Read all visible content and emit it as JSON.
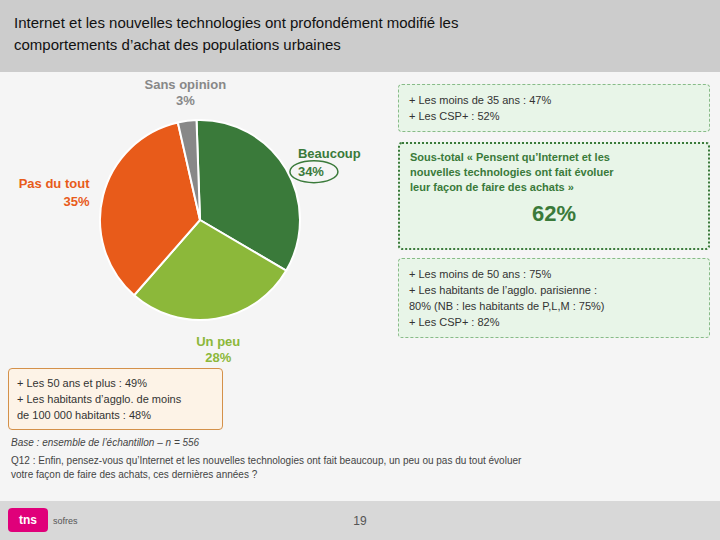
{
  "chart_data": {
    "type": "pie",
    "title": "Internet et les nouvelles technologies ont profondément modifié les\ncomportements d’achat des populations urbaines",
    "categories": [
      "Beaucoup",
      "Un peu",
      "Pas du tout",
      "Sans opinion"
    ],
    "values": [
      34,
      28,
      35,
      3
    ],
    "value_labels": [
      "34%",
      "28%",
      "35%",
      "3%"
    ],
    "colors": [
      "#3a7a3a",
      "#8cb83a",
      "#e85b1a",
      "#888888"
    ],
    "data_labels": true,
    "annotations": [
      "+ Les 50 ans et plus :  49%\n+ Les habitants d’agglo. de moins\nde 100 000 habitants : 48%",
      "+ Les moins de 35 ans : 47%\n+ Les CSP+ :  52%",
      "Sous-total « Pensent qu’Internet et les\nnouvelles technologies ont fait évoluer\nleur façon de faire des achats »",
      "62%",
      "+ Les moins de 50 ans : 75%\n+ Les habitants de l’agglo. parisienne :\n80% (NB : les habitants de P,L,M : 75%)\n+ Les CSP+ : 82%",
      "Base : ensemble de l’échantillon – n = 556",
      "Q12 : Enfin, pensez-vous qu’Internet et les nouvelles technologies ont fait beaucoup, un peu ou pas du tout évoluer\nvotre façon de faire des achats, ces dernières années ?",
      "tns",
      "sofres",
      "19"
    ]
  }
}
